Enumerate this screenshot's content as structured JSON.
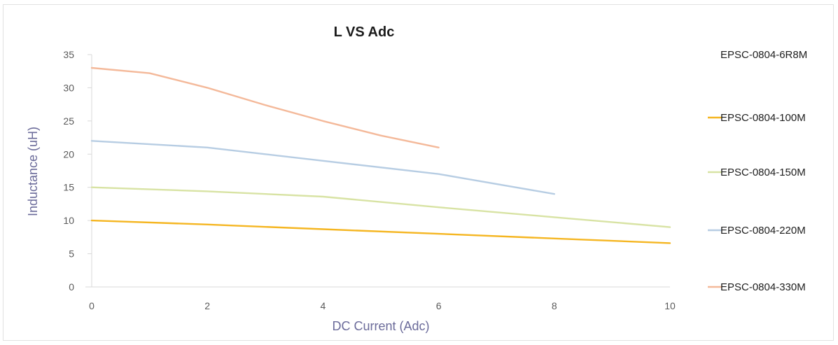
{
  "chart_data": {
    "type": "line",
    "title": "L VS Adc",
    "xlabel": "DC Current (Adc)",
    "ylabel": "Inductance (uH)",
    "xlim": [
      0,
      10
    ],
    "ylim": [
      0,
      35
    ],
    "xticks": [
      "0",
      "2",
      "4",
      "6",
      "8",
      "10"
    ],
    "yticks": [
      "0",
      "5",
      "10",
      "15",
      "20",
      "25",
      "30",
      "35"
    ],
    "grid": false,
    "legend_position": "right",
    "series": [
      {
        "name": "EPSC-0804-6R8M",
        "color": "#5b8fd0",
        "x": [],
        "y": []
      },
      {
        "name": "EPSC-0804-100M",
        "color": "#f5b622",
        "x": [
          0,
          2,
          4,
          6,
          8,
          10
        ],
        "y": [
          10,
          9.4,
          8.7,
          8,
          7.3,
          6.6
        ]
      },
      {
        "name": "EPSC-0804-150M",
        "color": "#d8e3a4",
        "x": [
          0,
          2,
          4,
          6,
          8,
          10
        ],
        "y": [
          15,
          14.4,
          13.6,
          12,
          10.5,
          9
        ]
      },
      {
        "name": "EPSC-0804-220M",
        "color": "#b7cde3",
        "x": [
          0,
          2,
          4,
          6,
          8
        ],
        "y": [
          22,
          21,
          19,
          17,
          14
        ]
      },
      {
        "name": "EPSC-0804-330M",
        "color": "#f4b99a",
        "x": [
          0,
          1,
          2,
          3,
          4,
          5,
          6
        ],
        "y": [
          33,
          32.2,
          30,
          27.4,
          25,
          22.8,
          21
        ]
      }
    ]
  }
}
